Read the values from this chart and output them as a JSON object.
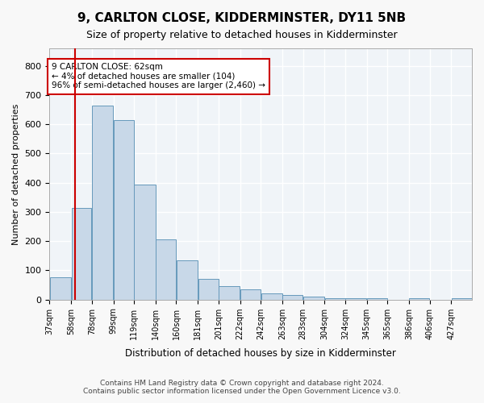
{
  "title": "9, CARLTON CLOSE, KIDDERMINSTER, DY11 5NB",
  "subtitle": "Size of property relative to detached houses in Kidderminster",
  "xlabel": "Distribution of detached houses by size in Kidderminster",
  "ylabel": "Number of detached properties",
  "bar_color": "#c8d8e8",
  "bar_edge_color": "#6699bb",
  "redline_x": 62,
  "annotation_title": "9 CARLTON CLOSE: 62sqm",
  "annotation_line1": "← 4% of detached houses are smaller (104)",
  "annotation_line2": "96% of semi-detached houses are larger (2,460) →",
  "footer1": "Contains HM Land Registry data © Crown copyright and database right 2024.",
  "footer2": "Contains public sector information licensed under the Open Government Licence v3.0.",
  "bins": [
    37,
    58,
    78,
    99,
    119,
    140,
    160,
    181,
    201,
    222,
    242,
    263,
    283,
    304,
    324,
    345,
    365,
    386,
    406,
    427,
    447
  ],
  "values": [
    75,
    315,
    665,
    615,
    395,
    205,
    135,
    70,
    45,
    35,
    20,
    15,
    10,
    5,
    5,
    5,
    0,
    5,
    0,
    5
  ],
  "ylim": [
    0,
    860
  ],
  "yticks": [
    0,
    100,
    200,
    300,
    400,
    500,
    600,
    700,
    800
  ],
  "bg_color": "#f0f4f8",
  "grid_color": "#ffffff",
  "annotation_box_color": "#ffffff",
  "annotation_box_edge": "#cc0000",
  "redline_color": "#cc0000"
}
